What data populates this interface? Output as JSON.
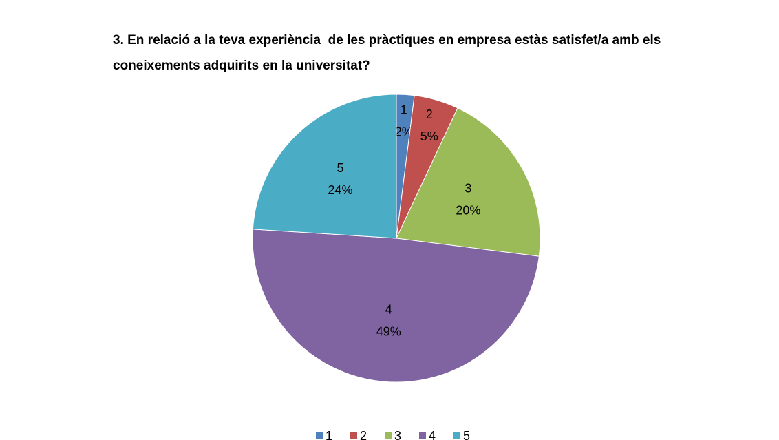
{
  "chart_data": {
    "type": "pie",
    "title": "3. En relació a la teva experiència  de les pràctiques en empresa estàs satisfet/a amb els coneixements adquirits en la universitat?",
    "categories": [
      "1",
      "2",
      "3",
      "4",
      "5"
    ],
    "values": [
      2,
      5,
      20,
      49,
      24
    ],
    "value_labels": [
      "2%",
      "5%",
      "20%",
      "49%",
      "24%"
    ],
    "colors": [
      "#4f81bd",
      "#c0504d",
      "#9bbb59",
      "#8064a2",
      "#4bacc6"
    ],
    "legend": "bottom"
  }
}
